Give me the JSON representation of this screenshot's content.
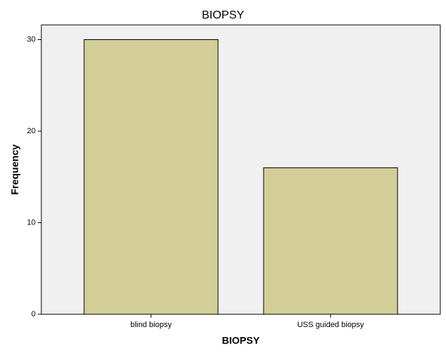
{
  "chart_data": {
    "type": "bar",
    "title": "BIOPSY",
    "x_label": "BIOPSY",
    "y_label": "Frequency",
    "categories": [
      "blind biopsy",
      "USS guided biopsy"
    ],
    "values": [
      30,
      16
    ],
    "color": "#d3ce97",
    "ylim": [
      0,
      31.6
    ],
    "yticks": [
      0,
      10,
      20,
      30
    ],
    "grid": false
  }
}
